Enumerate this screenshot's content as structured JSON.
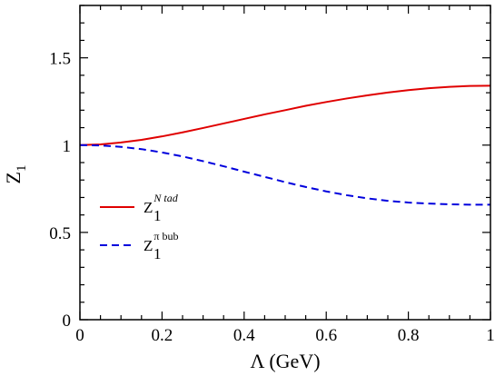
{
  "chart_data": {
    "type": "line",
    "title": "",
    "xlabel": "Λ (GeV)",
    "ylabel_main": "Z",
    "ylabel_sub": "1",
    "xlim": [
      0,
      1
    ],
    "ylim": [
      0,
      1.8
    ],
    "xticks": [
      0,
      0.2,
      0.4,
      0.6,
      0.8,
      1
    ],
    "xtick_labels": [
      "0",
      "0.2",
      "0.4",
      "0.6",
      "0.8",
      "1"
    ],
    "yticks": [
      0,
      0.5,
      1,
      1.5
    ],
    "ytick_labels": [
      "0",
      "0.5",
      "1",
      "1.5"
    ],
    "grid": false,
    "legend_position": "lower-left",
    "series": [
      {
        "label_main": "Z",
        "label_sub": "1",
        "label_sup": "N tad",
        "color": "#e00000",
        "dash": "solid",
        "x": [
          0,
          0.05,
          0.1,
          0.15,
          0.2,
          0.25,
          0.3,
          0.35,
          0.4,
          0.45,
          0.5,
          0.55,
          0.6,
          0.65,
          0.7,
          0.75,
          0.8,
          0.85,
          0.9,
          0.95,
          1.0
        ],
        "y": [
          1.0,
          1.004,
          1.015,
          1.03,
          1.05,
          1.073,
          1.098,
          1.124,
          1.15,
          1.176,
          1.2,
          1.225,
          1.247,
          1.267,
          1.285,
          1.301,
          1.315,
          1.326,
          1.334,
          1.339,
          1.34
        ]
      },
      {
        "label_main": "Z",
        "label_sub": "1",
        "label_sup": "π bub",
        "color": "#0000dd",
        "dash": "dashed",
        "x": [
          0,
          0.05,
          0.1,
          0.15,
          0.2,
          0.25,
          0.3,
          0.35,
          0.4,
          0.45,
          0.5,
          0.55,
          0.6,
          0.65,
          0.7,
          0.75,
          0.8,
          0.85,
          0.9,
          0.95,
          1.0
        ],
        "y": [
          1.0,
          0.998,
          0.99,
          0.977,
          0.958,
          0.935,
          0.908,
          0.879,
          0.848,
          0.818,
          0.788,
          0.76,
          0.735,
          0.713,
          0.695,
          0.681,
          0.671,
          0.665,
          0.661,
          0.659,
          0.659
        ]
      }
    ]
  }
}
